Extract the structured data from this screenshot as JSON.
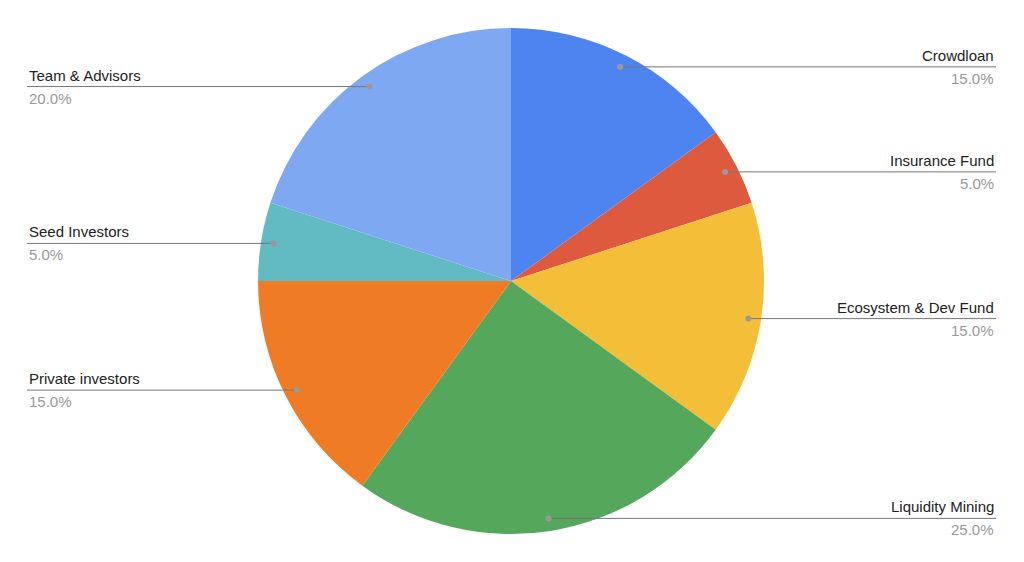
{
  "chart_data": {
    "type": "pie",
    "categories": [
      "Crowdloan",
      "Insurance Fund",
      "Ecosystem & Dev Fund",
      "Liquidity Mining",
      "Private investors",
      "Seed Investors",
      "Team & Advisors"
    ],
    "values": [
      15,
      5,
      15,
      25,
      15,
      5,
      20
    ],
    "value_labels": [
      "15.0%",
      "5.0%",
      "15.0%",
      "25.0%",
      "15.0%",
      "5.0%",
      "20.0%"
    ],
    "colors": [
      "#4e84ef",
      "#dd5a3e",
      "#f3bf38",
      "#55a75b",
      "#ef7b25",
      "#62bbc3",
      "#7fa8f3"
    ],
    "data_labels": true
  }
}
